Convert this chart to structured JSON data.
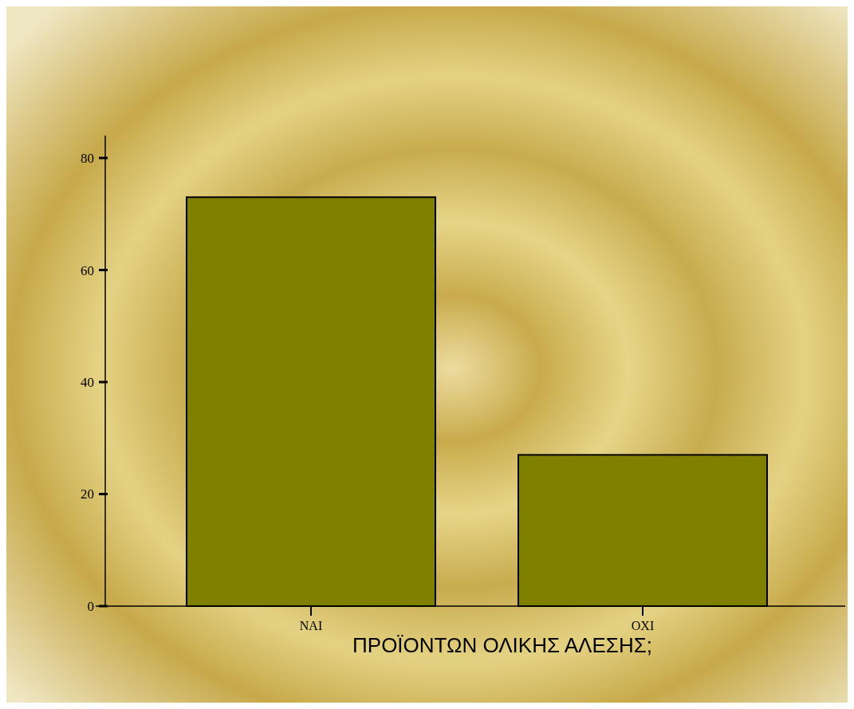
{
  "chart_data": {
    "type": "bar",
    "xlabel": "ΠΡΟΪΟΝΤΩΝ ΟΛΙΚΗΣ ΑΛΕΣΗΣ;",
    "categories": [
      "NAI",
      "OXI"
    ],
    "values": [
      73,
      27
    ],
    "color": "#7f7f00",
    "ylim": [
      0,
      84
    ],
    "yticks": [
      0,
      20,
      40,
      60,
      80
    ],
    "grid": false
  }
}
